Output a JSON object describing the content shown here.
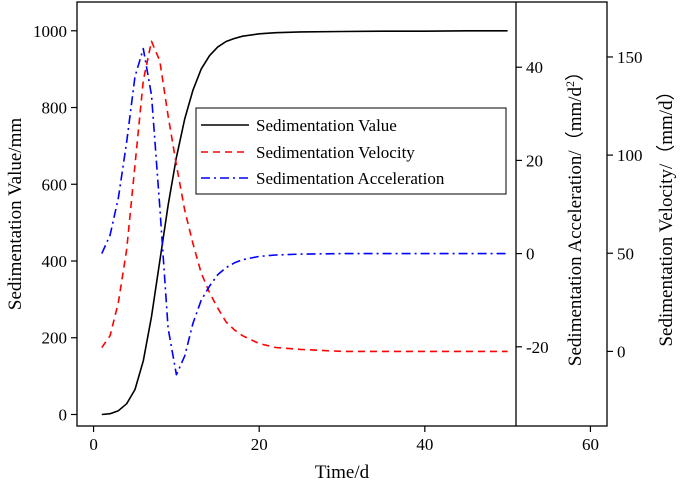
{
  "chart_data": {
    "type": "line",
    "title": "",
    "xlabel": "Time/d",
    "xlim": [
      -2,
      62
    ],
    "xticks": [
      0,
      20,
      40,
      60
    ],
    "y_axes": [
      {
        "id": "left",
        "label": "Sedimentation Value/mm",
        "lim": [
          -30,
          1075
        ],
        "ticks": [
          0,
          200,
          400,
          600,
          800,
          1000
        ]
      },
      {
        "id": "acc",
        "label_main": "Sedimentation Acceleration/（mm/d",
        "label_sup": "2",
        "label_end": "）",
        "lim": [
          -37,
          54
        ],
        "ticks": [
          -20,
          0,
          20,
          40
        ]
      },
      {
        "id": "vel",
        "label": "Sedimentation Velocity/（mm/d）",
        "lim": [
          -38,
          178
        ],
        "ticks": [
          0,
          50,
          100,
          150
        ]
      }
    ],
    "series": [
      {
        "name": "Sedimentation Value",
        "axis": "left",
        "color": "#000000",
        "dash": "",
        "x": [
          1,
          2,
          3,
          4,
          5,
          6,
          7,
          8,
          9,
          10,
          11,
          12,
          13,
          14,
          15,
          16,
          17,
          18,
          20,
          22,
          25,
          30,
          35,
          40,
          45,
          50
        ],
        "y": [
          0,
          2,
          10,
          28,
          65,
          140,
          255,
          400,
          545,
          670,
          770,
          845,
          900,
          935,
          958,
          972,
          980,
          986,
          992,
          995,
          997,
          998,
          999,
          999,
          1000,
          1000
        ]
      },
      {
        "name": "Sedimentation Velocity",
        "axis": "vel",
        "color": "#ff0000",
        "dash": "7,5",
        "x": [
          1,
          2,
          3,
          4,
          5,
          6,
          7,
          8,
          9,
          10,
          11,
          12,
          13,
          14,
          15,
          16,
          17,
          18,
          20,
          22,
          25,
          30,
          35,
          40,
          45,
          50
        ],
        "y": [
          2,
          8,
          25,
          52,
          95,
          138,
          158,
          148,
          120,
          95,
          72,
          55,
          40,
          30,
          22,
          15,
          11,
          8,
          4,
          2,
          1,
          0,
          0,
          0,
          0,
          0
        ]
      },
      {
        "name": "Sedimentation Acceleration",
        "axis": "acc",
        "color": "#0000ff",
        "dash": "9,4,2,4",
        "x": [
          1,
          2,
          3,
          4,
          5,
          6,
          7,
          8,
          9,
          10,
          11,
          12,
          13,
          14,
          15,
          16,
          17,
          18,
          20,
          22,
          25,
          30,
          35,
          40,
          45,
          50
        ],
        "y": [
          0,
          4,
          12,
          24,
          38,
          44,
          34,
          10,
          -16,
          -26,
          -22,
          -15,
          -10,
          -7,
          -4.5,
          -3,
          -2,
          -1.3,
          -0.6,
          -0.3,
          -0.1,
          0,
          0,
          0,
          0,
          0
        ]
      }
    ],
    "legend": {
      "placement": "center-right",
      "entries": [
        "Sedimentation Value",
        "Sedimentation Velocity",
        "Sedimentation Acceleration"
      ]
    }
  }
}
